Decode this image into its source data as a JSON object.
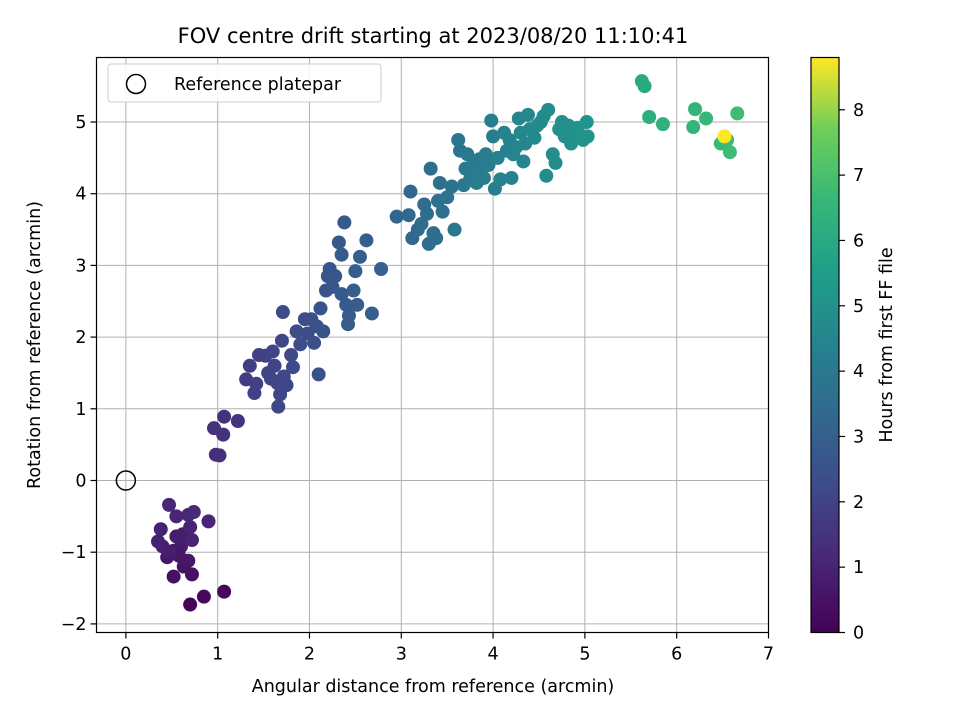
{
  "chart_data": {
    "type": "scatter",
    "title": "FOV centre drift starting at 2023/08/20 11:10:41",
    "xlabel": "Angular distance from reference (arcmin)",
    "ylabel": "Rotation from reference (arcmin)",
    "xlim": [
      -0.32,
      7.0
    ],
    "ylim": [
      -2.12,
      5.9
    ],
    "xticks": [
      "0",
      "1",
      "2",
      "3",
      "4",
      "5",
      "6",
      "7"
    ],
    "yticks": [
      "−2",
      "−1",
      "0",
      "1",
      "2",
      "3",
      "4",
      "5"
    ],
    "grid": true,
    "legend": {
      "placement": "top-left",
      "entries": [
        "Reference platepar"
      ]
    },
    "reference_point": {
      "x": 0,
      "y": 0
    },
    "colorbar": {
      "label": "Hours from first FF file",
      "colormap": "viridis",
      "range": [
        0,
        8.8
      ],
      "ticks": [
        "0",
        "1",
        "2",
        "3",
        "4",
        "5",
        "6",
        "7",
        "8"
      ]
    },
    "points": [
      [
        0.85,
        -1.62,
        0.2
      ],
      [
        1.07,
        -1.55,
        0.22
      ],
      [
        0.7,
        -1.73,
        0.15
      ],
      [
        0.72,
        -1.31,
        0.45
      ],
      [
        0.52,
        -1.34,
        0.5
      ],
      [
        0.63,
        -1.2,
        0.55
      ],
      [
        0.68,
        -1.12,
        0.6
      ],
      [
        0.45,
        -1.07,
        0.65
      ],
      [
        0.52,
        -0.98,
        0.7
      ],
      [
        0.6,
        -0.92,
        0.75
      ],
      [
        0.55,
        -0.78,
        0.8
      ],
      [
        0.62,
        -0.75,
        0.85
      ],
      [
        0.35,
        -0.85,
        0.9
      ],
      [
        0.38,
        -0.68,
        0.95
      ],
      [
        0.72,
        -0.83,
        1.0
      ],
      [
        0.7,
        -0.65,
        1.0
      ],
      [
        0.9,
        -0.57,
        1.05
      ],
      [
        0.55,
        -0.5,
        1.05
      ],
      [
        0.47,
        -0.34,
        1.1
      ],
      [
        0.68,
        -0.48,
        1.1
      ],
      [
        0.74,
        -0.44,
        1.15
      ],
      [
        0.4,
        -0.92,
        0.9
      ],
      [
        0.58,
        -1.05,
        0.6
      ],
      [
        0.48,
        -1.0,
        0.8
      ],
      [
        0.98,
        0.36,
        1.3
      ],
      [
        1.02,
        0.35,
        1.35
      ],
      [
        0.96,
        0.73,
        1.4
      ],
      [
        1.06,
        0.64,
        1.45
      ],
      [
        1.07,
        0.89,
        1.45
      ],
      [
        1.22,
        0.83,
        1.5
      ],
      [
        1.31,
        1.41,
        1.8
      ],
      [
        1.35,
        1.6,
        1.85
      ],
      [
        1.42,
        1.35,
        1.9
      ],
      [
        1.45,
        1.75,
        1.9
      ],
      [
        1.4,
        1.22,
        1.95
      ],
      [
        1.52,
        1.74,
        1.95
      ],
      [
        1.55,
        1.5,
        2.0
      ],
      [
        1.62,
        1.6,
        2.0
      ],
      [
        1.58,
        1.42,
        2.05
      ],
      [
        1.65,
        1.36,
        2.05
      ],
      [
        1.6,
        1.8,
        2.05
      ],
      [
        1.68,
        1.2,
        2.1
      ],
      [
        1.66,
        1.03,
        2.1
      ],
      [
        1.72,
        1.45,
        2.1
      ],
      [
        1.75,
        1.33,
        2.15
      ],
      [
        1.7,
        1.95,
        2.15
      ],
      [
        1.8,
        1.75,
        2.2
      ],
      [
        1.82,
        1.58,
        2.2
      ],
      [
        1.71,
        2.35,
        2.25
      ],
      [
        1.86,
        2.08,
        2.3
      ],
      [
        1.9,
        1.9,
        2.3
      ],
      [
        1.95,
        2.25,
        2.35
      ],
      [
        1.98,
        2.05,
        2.35
      ],
      [
        2.02,
        2.25,
        2.4
      ],
      [
        2.05,
        1.92,
        2.4
      ],
      [
        2.08,
        2.15,
        2.45
      ],
      [
        2.12,
        2.4,
        2.5
      ],
      [
        2.1,
        1.48,
        2.5
      ],
      [
        2.15,
        2.08,
        2.5
      ],
      [
        2.18,
        2.65,
        2.55
      ],
      [
        2.2,
        2.85,
        2.6
      ],
      [
        2.22,
        2.95,
        2.6
      ],
      [
        2.25,
        2.7,
        2.65
      ],
      [
        2.28,
        2.85,
        2.65
      ],
      [
        2.32,
        3.32,
        2.7
      ],
      [
        2.35,
        3.15,
        2.75
      ],
      [
        2.38,
        3.6,
        2.75
      ],
      [
        2.35,
        2.6,
        2.8
      ],
      [
        2.4,
        2.45,
        2.8
      ],
      [
        2.43,
        2.3,
        2.85
      ],
      [
        2.42,
        2.18,
        2.85
      ],
      [
        2.48,
        2.65,
        2.9
      ],
      [
        2.52,
        2.45,
        2.9
      ],
      [
        2.5,
        2.92,
        2.9
      ],
      [
        2.55,
        3.12,
        2.95
      ],
      [
        2.62,
        3.35,
        3.0
      ],
      [
        2.68,
        2.33,
        3.0
      ],
      [
        2.78,
        2.95,
        3.05
      ],
      [
        2.95,
        3.68,
        3.2
      ],
      [
        3.08,
        3.7,
        3.3
      ],
      [
        3.1,
        4.03,
        3.3
      ],
      [
        3.12,
        3.38,
        3.35
      ],
      [
        3.18,
        3.5,
        3.4
      ],
      [
        3.22,
        3.58,
        3.45
      ],
      [
        3.25,
        3.85,
        3.5
      ],
      [
        3.28,
        3.72,
        3.5
      ],
      [
        3.3,
        3.3,
        3.55
      ],
      [
        3.32,
        4.35,
        3.6
      ],
      [
        3.35,
        3.45,
        3.6
      ],
      [
        3.38,
        3.38,
        3.6
      ],
      [
        3.4,
        3.9,
        3.65
      ],
      [
        3.42,
        4.15,
        3.7
      ],
      [
        3.45,
        3.75,
        3.7
      ],
      [
        3.5,
        3.95,
        3.75
      ],
      [
        3.55,
        4.1,
        3.8
      ],
      [
        3.58,
        3.5,
        3.85
      ],
      [
        3.62,
        4.75,
        3.9
      ],
      [
        3.64,
        4.6,
        3.9
      ],
      [
        3.68,
        4.12,
        3.95
      ],
      [
        3.7,
        4.35,
        4.0
      ],
      [
        3.72,
        4.55,
        4.0
      ],
      [
        3.75,
        4.2,
        4.05
      ],
      [
        3.78,
        4.4,
        4.05
      ],
      [
        3.8,
        4.28,
        4.1
      ],
      [
        3.82,
        4.15,
        4.1
      ],
      [
        3.85,
        4.48,
        4.1
      ],
      [
        3.88,
        4.38,
        4.15
      ],
      [
        3.9,
        4.22,
        4.15
      ],
      [
        3.92,
        4.55,
        4.2
      ],
      [
        3.95,
        4.4,
        4.2
      ],
      [
        3.98,
        5.02,
        4.25
      ],
      [
        4.0,
        4.8,
        4.25
      ],
      [
        4.02,
        4.07,
        4.3
      ],
      [
        4.05,
        4.5,
        4.3
      ],
      [
        4.08,
        4.2,
        4.35
      ],
      [
        4.12,
        4.85,
        4.35
      ],
      [
        4.15,
        4.6,
        4.4
      ],
      [
        4.18,
        4.75,
        4.45
      ],
      [
        4.2,
        4.22,
        4.45
      ],
      [
        4.22,
        4.55,
        4.5
      ],
      [
        4.25,
        4.65,
        4.5
      ],
      [
        4.28,
        5.05,
        4.55
      ],
      [
        4.3,
        4.85,
        4.55
      ],
      [
        4.33,
        4.45,
        4.6
      ],
      [
        4.35,
        4.7,
        4.6
      ],
      [
        4.38,
        5.1,
        4.65
      ],
      [
        4.4,
        4.9,
        4.65
      ],
      [
        4.45,
        4.78,
        4.7
      ],
      [
        4.48,
        4.95,
        4.7
      ],
      [
        4.52,
        5.0,
        4.75
      ],
      [
        4.55,
        5.08,
        4.75
      ],
      [
        4.58,
        4.25,
        4.8
      ],
      [
        4.6,
        5.17,
        4.8
      ],
      [
        4.65,
        4.55,
        4.85
      ],
      [
        4.68,
        4.43,
        4.85
      ],
      [
        4.72,
        4.9,
        4.9
      ],
      [
        4.75,
        5.0,
        4.9
      ],
      [
        4.78,
        4.8,
        4.95
      ],
      [
        4.82,
        4.95,
        4.95
      ],
      [
        4.85,
        4.7,
        5.0
      ],
      [
        4.88,
        4.82,
        5.0
      ],
      [
        4.92,
        4.92,
        5.05
      ],
      [
        4.98,
        4.75,
        5.05
      ],
      [
        5.02,
        5.0,
        5.1
      ],
      [
        5.03,
        4.8,
        5.1
      ],
      [
        5.62,
        5.57,
        6.0
      ],
      [
        5.65,
        5.5,
        6.05
      ],
      [
        5.7,
        5.07,
        6.2
      ],
      [
        5.85,
        4.97,
        6.3
      ],
      [
        6.2,
        5.18,
        6.5
      ],
      [
        6.18,
        4.93,
        6.5
      ],
      [
        6.32,
        5.05,
        6.6
      ],
      [
        6.48,
        4.7,
        6.7
      ],
      [
        6.58,
        4.58,
        6.8
      ],
      [
        6.55,
        4.75,
        6.75
      ],
      [
        6.66,
        5.12,
        6.8
      ],
      [
        6.52,
        4.8,
        8.8
      ]
    ]
  }
}
